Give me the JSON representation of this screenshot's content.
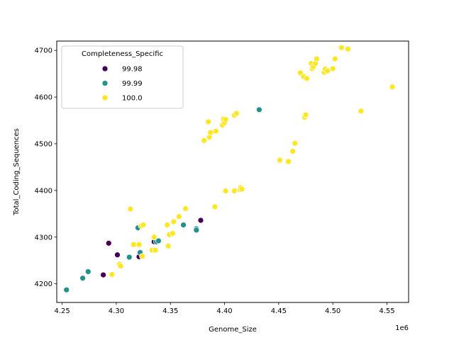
{
  "chart_data": {
    "type": "scatter",
    "xlabel": "Genome_Size",
    "ylabel": "Total_Coding_Sequences",
    "x_offset_label": "1e6",
    "x_scale": 1000000,
    "xlim": [
      4.245,
      4.57
    ],
    "ylim": [
      4160,
      4720
    ],
    "x_ticks": [
      4.25,
      4.3,
      4.35,
      4.4,
      4.45,
      4.5,
      4.55
    ],
    "x_tick_labels": [
      "4.25",
      "4.30",
      "4.35",
      "4.40",
      "4.45",
      "4.50",
      "4.55"
    ],
    "y_ticks": [
      4200,
      4300,
      4400,
      4500,
      4600,
      4700
    ],
    "y_tick_labels": [
      "4200",
      "4300",
      "4400",
      "4500",
      "4600",
      "4700"
    ],
    "grid": false,
    "legend": {
      "title": "Completeness_Specific",
      "placement": "upper-left"
    },
    "series": [
      {
        "name": "99.98",
        "color": "#440154",
        "points": [
          [
            4.288,
            4219
          ],
          [
            4.293,
            4287
          ],
          [
            4.301,
            4262
          ],
          [
            4.321,
            4258
          ],
          [
            4.335,
            4290
          ],
          [
            4.378,
            4336
          ]
        ]
      },
      {
        "name": "99.99",
        "color": "#21918c",
        "points": [
          [
            4.254,
            4187
          ],
          [
            4.269,
            4212
          ],
          [
            4.274,
            4226
          ],
          [
            4.312,
            4257
          ],
          [
            4.32,
            4320
          ],
          [
            4.322,
            4267
          ],
          [
            4.337,
            4290
          ],
          [
            4.339,
            4292
          ],
          [
            4.362,
            4326
          ],
          [
            4.374,
            4318
          ],
          [
            4.374,
            4315
          ],
          [
            4.432,
            4573
          ]
        ]
      },
      {
        "name": "100.0",
        "color": "#fde725",
        "points": [
          [
            4.296,
            4220
          ],
          [
            4.303,
            4242
          ],
          [
            4.304,
            4238
          ],
          [
            4.313,
            4360
          ],
          [
            4.316,
            4284
          ],
          [
            4.321,
            4284
          ],
          [
            4.323,
            4324
          ],
          [
            4.324,
            4259
          ],
          [
            4.325,
            4326
          ],
          [
            4.333,
            4272
          ],
          [
            4.335,
            4300
          ],
          [
            4.336,
            4272
          ],
          [
            4.347,
            4326
          ],
          [
            4.348,
            4281
          ],
          [
            4.349,
            4305
          ],
          [
            4.352,
            4308
          ],
          [
            4.353,
            4333
          ],
          [
            4.358,
            4344
          ],
          [
            4.364,
            4361
          ],
          [
            4.381,
            4507
          ],
          [
            4.385,
            4547
          ],
          [
            4.386,
            4514
          ],
          [
            4.387,
            4524
          ],
          [
            4.391,
            4365
          ],
          [
            4.392,
            4527
          ],
          [
            4.398,
            4540
          ],
          [
            4.399,
            4548
          ],
          [
            4.399,
            4553
          ],
          [
            4.4,
            4545
          ],
          [
            4.401,
            4399
          ],
          [
            4.401,
            4552
          ],
          [
            4.409,
            4561
          ],
          [
            4.409,
            4399
          ],
          [
            4.411,
            4565
          ],
          [
            4.414,
            4402
          ],
          [
            4.415,
            4406
          ],
          [
            4.416,
            4403
          ],
          [
            4.451,
            4465
          ],
          [
            4.459,
            4462
          ],
          [
            4.463,
            4484
          ],
          [
            4.465,
            4501
          ],
          [
            4.47,
            4652
          ],
          [
            4.473,
            4644
          ],
          [
            4.474,
            4557
          ],
          [
            4.475,
            4562
          ],
          [
            4.476,
            4640
          ],
          [
            4.48,
            4672
          ],
          [
            4.481,
            4661
          ],
          [
            4.482,
            4665
          ],
          [
            4.484,
            4672
          ],
          [
            4.485,
            4682
          ],
          [
            4.492,
            4653
          ],
          [
            4.493,
            4660
          ],
          [
            4.495,
            4656
          ],
          [
            4.5,
            4661
          ],
          [
            4.502,
            4682
          ],
          [
            4.508,
            4706
          ],
          [
            4.514,
            4703
          ],
          [
            4.526,
            4570
          ],
          [
            4.555,
            4622
          ]
        ]
      }
    ]
  }
}
